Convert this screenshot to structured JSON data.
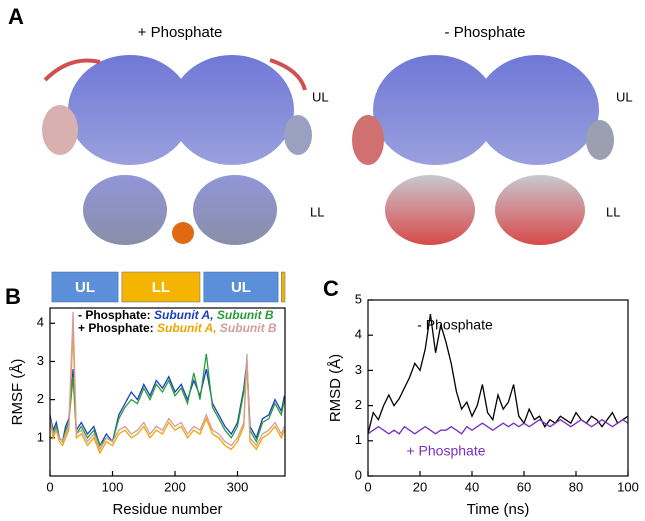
{
  "panel_a": {
    "label": "A",
    "left_title": "+ Phosphate",
    "right_title": "- Phosphate",
    "left_upper": "UL",
    "left_lower": "LL",
    "right_upper": "UL",
    "right_lower": "LL"
  },
  "chart_data": [
    {
      "type": "line",
      "panel_label": "B",
      "x_label": "Residue number",
      "y_label": "RMSF (Å)",
      "xlim": [
        0,
        376
      ],
      "xticks": [
        0,
        100,
        200,
        300
      ],
      "ylim": [
        0,
        4.4
      ],
      "yticks": [
        1,
        2,
        3,
        4
      ],
      "domains": [
        {
          "label": "UL",
          "start": 3,
          "end": 109,
          "color": "#5b8fd9"
        },
        {
          "label": "LL",
          "start": 115,
          "end": 240,
          "color": "#f5b400"
        },
        {
          "label": "UL",
          "start": 246,
          "end": 365,
          "color": "#5b8fd9"
        },
        {
          "start": 370,
          "end": 376,
          "color": "#f5b400"
        }
      ],
      "x": [
        0,
        5,
        10,
        15,
        20,
        25,
        30,
        37,
        42,
        50,
        60,
        70,
        80,
        90,
        100,
        110,
        120,
        130,
        140,
        150,
        160,
        170,
        180,
        190,
        200,
        210,
        220,
        230,
        240,
        250,
        260,
        270,
        280,
        290,
        300,
        310,
        315,
        320,
        330,
        340,
        350,
        360,
        370,
        375
      ],
      "series_groups": [
        {
          "name": "- Phosphate:",
          "series": [
            {
              "name": "Subunit A,",
              "color": "#1a3fc0",
              "values": [
                1.6,
                1.2,
                1.4,
                1.0,
                0.9,
                1.3,
                1.5,
                2.8,
                1.2,
                1.4,
                1.1,
                1.3,
                0.8,
                1.1,
                0.9,
                1.6,
                1.9,
                2.2,
                2.0,
                2.4,
                2.1,
                2.5,
                2.3,
                2.6,
                2.2,
                2.4,
                2.0,
                2.5,
                2.1,
                2.8,
                1.9,
                1.6,
                1.3,
                1.1,
                1.4,
                2.3,
                3.0,
                1.3,
                1.0,
                1.5,
                1.6,
                2.0,
                1.7,
                2.1
              ]
            },
            {
              "name": "Subunit B",
              "color": "#2a9d3a",
              "values": [
                1.5,
                1.1,
                1.3,
                1.0,
                0.9,
                1.2,
                1.4,
                2.6,
                1.1,
                1.3,
                1.0,
                1.2,
                0.8,
                1.0,
                0.9,
                1.5,
                1.8,
                2.0,
                1.9,
                2.3,
                2.0,
                2.4,
                2.2,
                2.5,
                2.1,
                2.3,
                1.9,
                2.7,
                2.0,
                3.2,
                1.8,
                1.5,
                1.2,
                1.0,
                1.3,
                2.2,
                2.9,
                1.2,
                0.9,
                1.4,
                1.5,
                1.9,
                1.6,
                2.0
              ]
            }
          ]
        },
        {
          "name": "+ Phosphate:",
          "series": [
            {
              "name": "Subunit A,",
              "color": "#f0a500",
              "values": [
                1.5,
                1.0,
                1.2,
                0.9,
                0.8,
                1.0,
                1.2,
                3.8,
                1.0,
                1.1,
                0.8,
                1.0,
                0.6,
                0.9,
                0.8,
                1.1,
                1.2,
                1.0,
                1.1,
                1.3,
                1.0,
                1.2,
                1.1,
                1.4,
                1.2,
                1.3,
                1.0,
                1.2,
                1.1,
                1.5,
                1.1,
                1.0,
                0.8,
                0.7,
                0.9,
                1.3,
                3.0,
                0.9,
                0.7,
                1.0,
                1.1,
                1.3,
                1.0,
                1.2
              ]
            },
            {
              "name": "Subunit B",
              "color": "#d49c9c",
              "values": [
                1.5,
                1.1,
                1.2,
                1.0,
                0.9,
                1.1,
                1.3,
                4.3,
                1.1,
                1.2,
                0.9,
                1.1,
                0.7,
                1.0,
                0.9,
                1.2,
                1.3,
                1.1,
                1.2,
                1.4,
                1.1,
                1.3,
                1.2,
                1.5,
                1.3,
                1.4,
                1.1,
                1.3,
                1.2,
                1.6,
                1.2,
                1.1,
                0.9,
                0.8,
                1.0,
                1.4,
                3.2,
                1.0,
                0.8,
                1.1,
                1.2,
                1.4,
                1.1,
                1.3
              ]
            }
          ]
        }
      ]
    },
    {
      "type": "line",
      "panel_label": "C",
      "x_label": "Time (ns)",
      "y_label": "RMSD (Å)",
      "xlim": [
        0,
        100
      ],
      "xticks": [
        0,
        20,
        40,
        60,
        80,
        100
      ],
      "ylim": [
        0,
        5
      ],
      "yticks": [
        0,
        1,
        2,
        3,
        4,
        5
      ],
      "x": [
        0,
        2,
        4,
        6,
        8,
        10,
        12,
        14,
        16,
        18,
        20,
        22,
        24,
        26,
        28,
        30,
        32,
        34,
        36,
        38,
        40,
        42,
        44,
        46,
        48,
        50,
        52,
        54,
        56,
        58,
        60,
        62,
        64,
        66,
        68,
        70,
        72,
        74,
        76,
        78,
        80,
        82,
        84,
        86,
        88,
        90,
        92,
        94,
        96,
        98,
        100
      ],
      "series": [
        {
          "name": "- Phosphate",
          "color": "#000000",
          "values": [
            1.2,
            1.8,
            1.6,
            2.0,
            2.3,
            2.0,
            2.2,
            2.5,
            2.8,
            3.2,
            3.0,
            3.6,
            4.6,
            3.5,
            4.3,
            3.8,
            3.2,
            2.4,
            1.9,
            2.1,
            1.7,
            2.0,
            2.6,
            1.8,
            1.6,
            2.3,
            1.9,
            2.1,
            2.6,
            1.7,
            1.5,
            1.9,
            1.6,
            1.7,
            1.4,
            1.6,
            1.5,
            1.7,
            1.6,
            1.5,
            1.8,
            1.6,
            1.5,
            1.7,
            1.6,
            1.4,
            1.6,
            1.8,
            1.5,
            1.6,
            1.7
          ]
        },
        {
          "name": "+ Phosphate",
          "color": "#7b2fbf",
          "values": [
            1.2,
            1.3,
            1.4,
            1.3,
            1.2,
            1.3,
            1.2,
            1.4,
            1.3,
            1.2,
            1.3,
            1.4,
            1.3,
            1.2,
            1.3,
            1.3,
            1.4,
            1.3,
            1.2,
            1.4,
            1.3,
            1.4,
            1.5,
            1.4,
            1.3,
            1.4,
            1.5,
            1.4,
            1.5,
            1.4,
            1.5,
            1.4,
            1.5,
            1.6,
            1.5,
            1.4,
            1.5,
            1.6,
            1.5,
            1.4,
            1.5,
            1.6,
            1.5,
            1.4,
            1.5,
            1.6,
            1.5,
            1.4,
            1.5,
            1.6,
            1.5
          ]
        }
      ]
    }
  ]
}
